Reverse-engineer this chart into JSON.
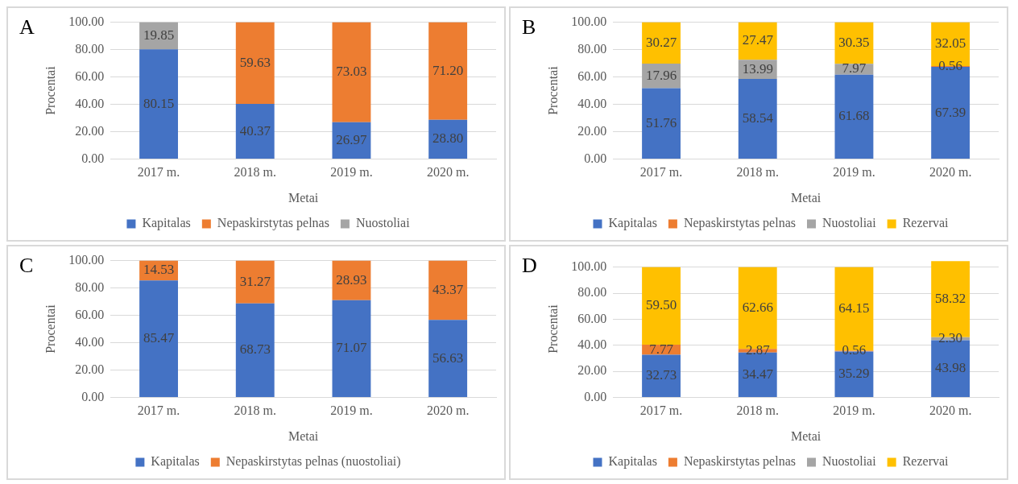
{
  "chart_data": [
    {
      "type": "bar",
      "title": "A",
      "xlabel": "Metai",
      "ylabel": "Procentai",
      "categories": [
        "2017 m.",
        "2018 m.",
        "2019 m.",
        "2020 m."
      ],
      "stacked": true,
      "grid": "y",
      "legend": "bottom",
      "ylim": [
        0,
        100
      ],
      "yticks": [
        {
          "value": 0,
          "label": "0.00"
        },
        {
          "value": 20,
          "label": "20.00"
        },
        {
          "value": 40,
          "label": "40.00"
        },
        {
          "value": 60,
          "label": "60.00"
        },
        {
          "value": 80,
          "label": "80.00"
        },
        {
          "value": 100,
          "label": "100.00"
        }
      ],
      "series": [
        {
          "name": "Kapitalas",
          "color": "#4472c4",
          "values": [
            80.15,
            40.37,
            26.97,
            28.8
          ],
          "value_labels": [
            "80.15",
            "40.37",
            "26.97",
            "28.80"
          ]
        },
        {
          "name": "Nepaskirstytas pelnas",
          "color": "#ed7d31",
          "values": [
            null,
            59.63,
            73.03,
            71.2
          ],
          "value_labels": [
            null,
            "59.63",
            "73.03",
            "71.20"
          ]
        },
        {
          "name": "Nuostoliai",
          "color": "#a5a5a5",
          "values": [
            19.85,
            null,
            null,
            null
          ],
          "value_labels": [
            "19.85",
            null,
            null,
            null
          ]
        }
      ]
    },
    {
      "type": "bar",
      "title": "B",
      "xlabel": "Metai",
      "ylabel": "Procentai",
      "categories": [
        "2017 m.",
        "2018 m.",
        "2019 m.",
        "2020 m."
      ],
      "stacked": true,
      "grid": "y",
      "legend": "bottom",
      "ylim": [
        0,
        100
      ],
      "yticks": [
        {
          "value": 0,
          "label": "0.00"
        },
        {
          "value": 20,
          "label": "20.00"
        },
        {
          "value": 40,
          "label": "40.00"
        },
        {
          "value": 60,
          "label": "60.00"
        },
        {
          "value": 80,
          "label": "80.00"
        },
        {
          "value": 100,
          "label": "100.00"
        }
      ],
      "series": [
        {
          "name": "Kapitalas",
          "color": "#4472c4",
          "values": [
            51.76,
            58.54,
            61.68,
            67.39
          ],
          "value_labels": [
            "51.76",
            "58.54",
            "61.68",
            "67.39"
          ]
        },
        {
          "name": "Nepaskirstytas pelnas",
          "color": "#ed7d31",
          "values": [
            null,
            null,
            null,
            0.56
          ],
          "value_labels": [
            null,
            null,
            null,
            "0.56"
          ]
        },
        {
          "name": "Nuostoliai",
          "color": "#a5a5a5",
          "values": [
            17.96,
            13.99,
            7.97,
            null
          ],
          "value_labels": [
            "17.96",
            "13.99",
            "7.97",
            null
          ]
        },
        {
          "name": "Rezervai",
          "color": "#ffc000",
          "values": [
            30.27,
            27.47,
            30.35,
            32.05
          ],
          "value_labels": [
            "30.27",
            "27.47",
            "30.35",
            "32.05"
          ]
        }
      ]
    },
    {
      "type": "bar",
      "title": "C",
      "xlabel": "Metai",
      "ylabel": "Procentai",
      "categories": [
        "2017 m.",
        "2018 m.",
        "2019 m.",
        "2020 m."
      ],
      "stacked": true,
      "grid": "y",
      "legend": "bottom",
      "ylim": [
        0,
        100
      ],
      "yticks": [
        {
          "value": 0,
          "label": "0.00"
        },
        {
          "value": 20,
          "label": "20.00"
        },
        {
          "value": 40,
          "label": "40.00"
        },
        {
          "value": 60,
          "label": "60.00"
        },
        {
          "value": 80,
          "label": "80.00"
        },
        {
          "value": 100,
          "label": "100.00"
        }
      ],
      "series": [
        {
          "name": "Kapitalas",
          "color": "#4472c4",
          "values": [
            85.47,
            68.73,
            71.07,
            56.63
          ],
          "value_labels": [
            "85.47",
            "68.73",
            "71.07",
            "56.63"
          ]
        },
        {
          "name": "Nepaskirstytas pelnas (nuostoliai)",
          "color": "#ed7d31",
          "values": [
            14.53,
            31.27,
            28.93,
            43.37
          ],
          "value_labels": [
            "14.53",
            "31.27",
            "28.93",
            "43.37"
          ]
        }
      ]
    },
    {
      "type": "bar",
      "title": "D",
      "xlabel": "Metai",
      "ylabel": "Procentai",
      "categories": [
        "2017 m.",
        "2018 m.",
        "2019 m.",
        "2020 m."
      ],
      "stacked": true,
      "grid": "y",
      "legend": "bottom",
      "ylim": [
        0,
        105
      ],
      "yticks": [
        {
          "value": 0,
          "label": "0.00"
        },
        {
          "value": 20,
          "label": "20.00"
        },
        {
          "value": 40,
          "label": "40.00"
        },
        {
          "value": 60,
          "label": "60.00"
        },
        {
          "value": 80,
          "label": "80.00"
        },
        {
          "value": 100,
          "label": "100.00"
        }
      ],
      "series": [
        {
          "name": "Kapitalas",
          "color": "#4472c4",
          "values": [
            32.73,
            34.47,
            35.29,
            43.98
          ],
          "value_labels": [
            "32.73",
            "34.47",
            "35.29",
            "43.98"
          ]
        },
        {
          "name": "Nepaskirstytas pelnas",
          "color": "#ed7d31",
          "values": [
            7.77,
            2.87,
            0.56,
            null
          ],
          "value_labels": [
            "7.77",
            "2.87",
            "0.56",
            null
          ]
        },
        {
          "name": "Nuostoliai",
          "color": "#a5a5a5",
          "values": [
            null,
            null,
            null,
            2.3
          ],
          "value_labels": [
            null,
            null,
            null,
            "2.30"
          ]
        },
        {
          "name": "Rezervai",
          "color": "#ffc000",
          "values": [
            59.5,
            62.66,
            64.15,
            58.32
          ],
          "value_labels": [
            "59.50",
            "62.66",
            "64.15",
            "58.32"
          ]
        }
      ]
    }
  ]
}
